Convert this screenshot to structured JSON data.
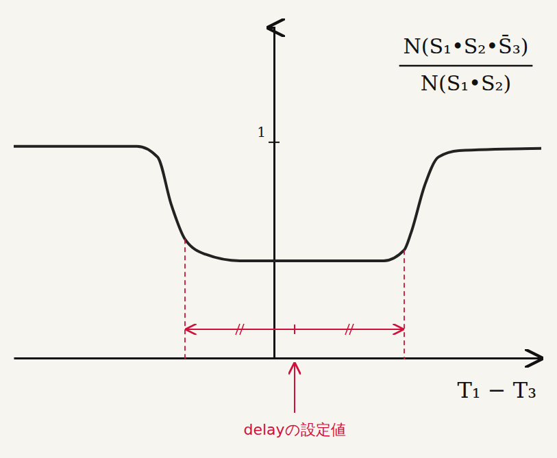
{
  "chart_data": {
    "type": "line",
    "y_label": {
      "numerator": "N(S₁•S₂•S̄₃)",
      "denominator": "N(S₁•S₂)"
    },
    "x_label": "T₁ − T₃",
    "x": [
      -3.8,
      -2.0,
      -1.7,
      -1.5,
      -1.3,
      -1.0,
      -0.5,
      0.0,
      1.0,
      1.6,
      1.9,
      2.0,
      2.2,
      2.4,
      2.7,
      3.9
    ],
    "values": [
      0.98,
      0.98,
      0.93,
      0.71,
      0.55,
      0.48,
      0.45,
      0.45,
      0.45,
      0.45,
      0.5,
      0.58,
      0.8,
      0.93,
      0.96,
      0.97
    ],
    "color": "#222222",
    "xlim": [
      -3.8,
      3.9
    ],
    "ylim": [
      0,
      1.53
    ],
    "yticks": [
      1
    ],
    "tick_labels": "y",
    "window": {
      "lo": -1.3,
      "hi": 1.9,
      "color": "#d0103a"
    },
    "annotations": [
      {
        "text": "delayの設定値",
        "x": 0.3,
        "color": "#d0103a"
      }
    ]
  }
}
